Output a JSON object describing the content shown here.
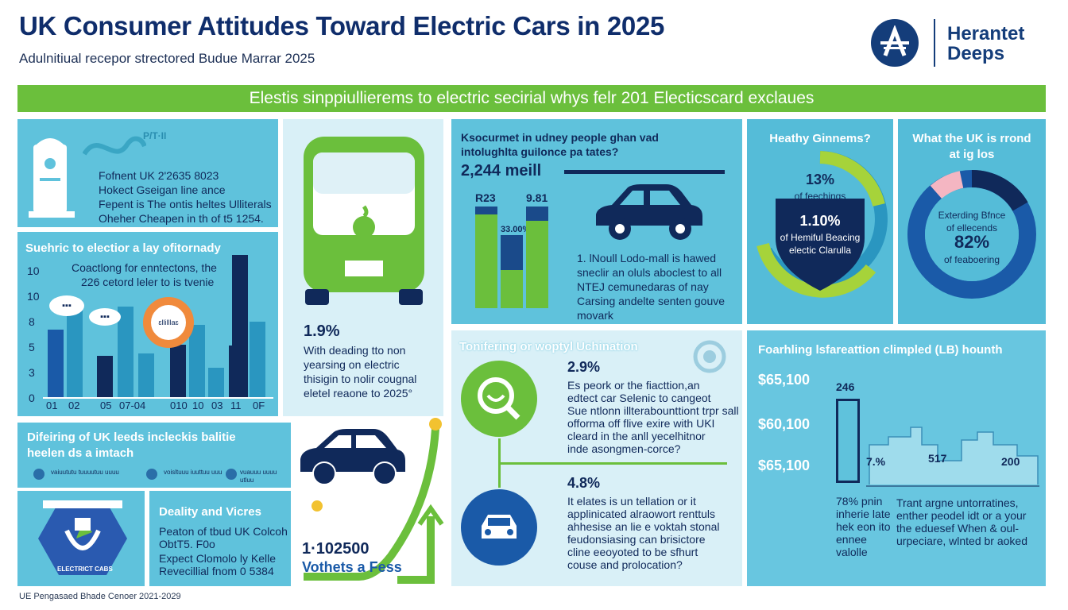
{
  "header": {
    "title": "UK Consumer Attitudes Toward Electric Cars in 2025",
    "subtitle": "Adulnitiual recepor strectored Budue Marrar 2025",
    "logo_text_line1": "Herantet",
    "logo_text_line2": "Deeps"
  },
  "banner": {
    "text": "Elestis sinppiullierems to electric secirial whys felr 201 Electicscard exclaues"
  },
  "panel1": {
    "icon_text": "P/T·II",
    "lines": [
      "Fofnent UK 2'2635 8023",
      "Hokect Gseigan line ance",
      "Fepent is The ontis heltes Ulliterals",
      "Oheher Cheapen in th of t5 1254."
    ]
  },
  "panel2": {
    "title": "Suehric to electior a lay ofitornady",
    "text_line1": "Coactlong for enntectons, the",
    "text_line2": "226 cetord leler to is tvenie",
    "y_ticks": [
      "10",
      "10",
      "8",
      "5",
      "3",
      "0"
    ],
    "x_ticks": [
      "01",
      "02",
      "05",
      "07-04",
      "010",
      "10",
      "03",
      "10",
      "11",
      "0F"
    ],
    "bubble1": "▪▪▪",
    "bubble2": "▪▪▪",
    "ring_label": "ɛllilllaɛ"
  },
  "chart_data": {
    "type": "bar",
    "title": "",
    "values": [
      5.5,
      7.6,
      3.4,
      7.4,
      3.6,
      4.3,
      5.9,
      2.4,
      4.2,
      11.6,
      6.2
    ]
  },
  "panel3": {
    "value": "1.9%",
    "text": [
      "With deading tto non",
      "yearsing on electric",
      "thisigin to nolir cougnal",
      "eletel reaone to 2025°"
    ]
  },
  "panel4": {
    "title_line1": "Ksocurmet in udney people ghan vad",
    "title_line2": "intolughlta guilonce pa tates?",
    "big_value": "2,244 meill",
    "bar1_label": "R23",
    "bar2_label": "9.81",
    "bar3_label": "33.00%",
    "text": [
      "1. lNoull Lodo-mall is hawed",
      "sneclir an oluls aboclest to all",
      "NTEJ cemunedaras of nay",
      "Carsing andelte senten gouve",
      "movark"
    ]
  },
  "panel5": {
    "title": "Heathy Ginnems?",
    "value1": "13%",
    "label1": "of feechings",
    "value2": "1.10%",
    "label2_line1": "of Hemiful Beacing",
    "label2_line2": "electic Clarulla"
  },
  "panel6": {
    "title_line1": "What the UK is rrond",
    "title_line2": "at ig los",
    "label_line1": "Exterding Bfnce",
    "label_line2": "of ellecends",
    "value": "82%",
    "value_label": "of feaboering"
  },
  "panel7": {
    "title": "Tonifering or woptyl Uchination",
    "value1": "2.9%",
    "text1": [
      "Es peork or the fiacttion,an",
      "edtect car Selenic to cangeot",
      "Sue ntlonn illterabounttiont trpr sall",
      "offorma off flive exire with UKI",
      "cleard in the anll yecelhitnor",
      "inde asongmen-corce?"
    ],
    "value2": "4.8%",
    "text2": [
      "It elates is un tellation or it",
      "applinicated alraowort renttuls",
      "ahhesise an lie e voktah stonal",
      "feudonsiasing can brisictore",
      "cline eeoyoted to be sfhurt",
      "couse and prolocation?"
    ]
  },
  "panel8": {
    "title": "Foarhling lsfareattion climpled (LB) hounth",
    "y_values": [
      "$65,100",
      "$60,100",
      "$65,100"
    ],
    "bar_label": "246",
    "pct": "7.%",
    "val1": "517",
    "val2": "200",
    "text_left": [
      "78% pnin",
      "inherie late",
      "hek eon ito",
      "ennee",
      "valolle"
    ],
    "text_right": [
      "Trant argne untorratines,",
      "enther peodel idt or a your",
      "the eduesef When & oul-",
      "urpeciare, wlnted br aoked"
    ]
  },
  "panel9": {
    "title_line1": "Difeiring of UK leeds incleckis balitie",
    "title_line2": "heelen ds a imtach",
    "small_items": [
      "vaiuututu tuuuutuu uuuu",
      "voisltuuu iuuttuu uuu",
      "vuauuu uuuu utluu"
    ],
    "badge_top": "ELECTRIC CARS",
    "badge_label": "ELECTRICT CABS"
  },
  "panel10": {
    "title": "Deality and Vicres",
    "lines": [
      "Peaton of tbud UK Colcoh",
      "ObtT5. F0o",
      "Expect Clomolo ly Kelle",
      "Revecillial fnom 0 5384"
    ]
  },
  "panel11": {
    "value": "1·102500",
    "label": "Vothets a Fess"
  },
  "footer": {
    "text": "UE Pengasaed Bhade Cenoer 2021-2029"
  },
  "colors": {
    "navy": "#10295a",
    "green": "#6bbf3c",
    "cyan": "#5fc2dc",
    "light": "#d9f0f7"
  }
}
